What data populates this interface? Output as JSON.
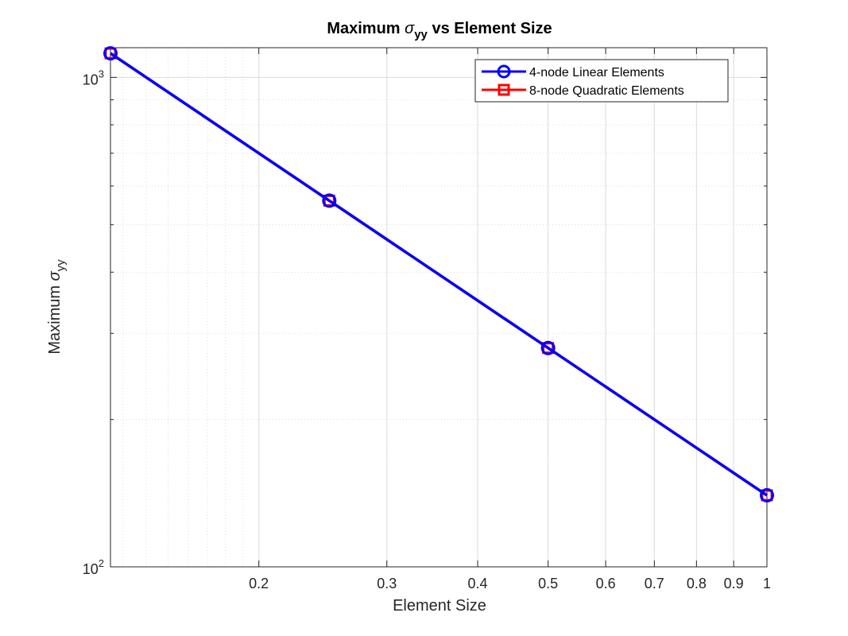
{
  "chart_data": {
    "type": "line",
    "title": {
      "prefix": "Maximum ",
      "symbol": "σ",
      "subscript": "yy",
      "suffix": " vs Element Size"
    },
    "xlabel": "Element Size",
    "ylabel": {
      "prefix": "Maximum ",
      "symbol": "σ",
      "subscript": "yy"
    },
    "xscale": "log",
    "yscale": "log",
    "xlim": [
      0.125,
      1
    ],
    "ylim": [
      100,
      1150
    ],
    "x_ticks": [
      {
        "value": 0.2,
        "label": "0.2"
      },
      {
        "value": 0.3,
        "label": "0.3"
      },
      {
        "value": 0.4,
        "label": "0.4"
      },
      {
        "value": 0.5,
        "label": "0.5"
      },
      {
        "value": 0.6,
        "label": "0.6"
      },
      {
        "value": 0.7,
        "label": "0.7"
      },
      {
        "value": 0.8,
        "label": "0.8"
      },
      {
        "value": 0.9,
        "label": "0.9"
      },
      {
        "value": 1,
        "label": "1"
      }
    ],
    "y_ticks": [
      {
        "value": 100,
        "base": "10",
        "exp": "2"
      },
      {
        "value": 1000,
        "base": "10",
        "exp": "3"
      }
    ],
    "grid": true,
    "minor_grid": true,
    "legend_position": "top-right",
    "series": [
      {
        "name": "4-node Linear Elements",
        "color": "#0000ff",
        "marker": "circle",
        "x": [
          0.125,
          0.25,
          0.5,
          1
        ],
        "y": [
          1120,
          560,
          280,
          140
        ]
      },
      {
        "name": "8-node Quadratic Elements",
        "color": "#ff0000",
        "marker": "square",
        "x": [
          0.125,
          0.25,
          0.5,
          1
        ],
        "y": [
          1120,
          560,
          280,
          140
        ]
      }
    ]
  }
}
